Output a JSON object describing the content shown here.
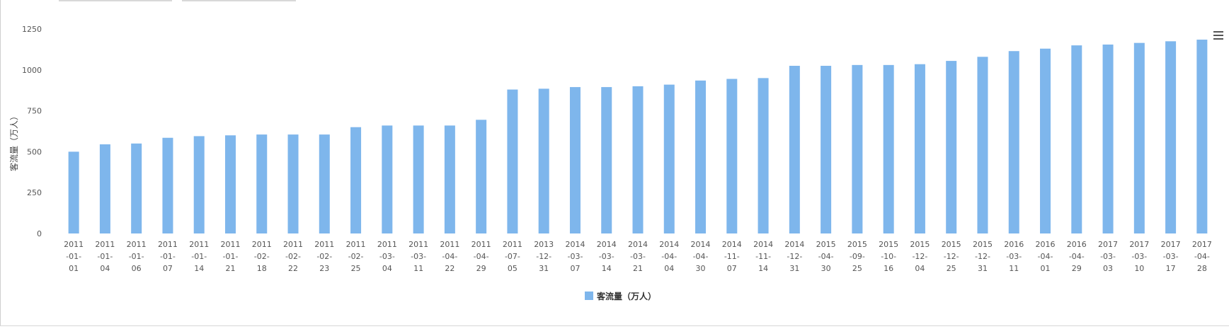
{
  "chart_data": {
    "type": "bar",
    "title": "",
    "xlabel": "",
    "ylabel": "客流量（万人）",
    "legend": {
      "position": "bottom-center",
      "label": "客流量（万人）"
    },
    "color": "#7eb6ec",
    "ylim": [
      0,
      1250
    ],
    "yticks": [
      0,
      250,
      500,
      750,
      1000,
      1250
    ],
    "grid": false,
    "categories": [
      "2011-01-01",
      "2011-01-04",
      "2011-01-06",
      "2011-01-07",
      "2011-01-14",
      "2011-01-21",
      "2011-02-18",
      "2011-02-22",
      "2011-02-23",
      "2011-02-25",
      "2011-03-04",
      "2011-03-11",
      "2011-04-22",
      "2011-04-29",
      "2011-07-05",
      "2013-12-31",
      "2014-03-07",
      "2014-03-14",
      "2014-03-21",
      "2014-04-04",
      "2014-04-30",
      "2014-11-07",
      "2014-11-14",
      "2014-12-31",
      "2015-04-30",
      "2015-09-25",
      "2015-10-16",
      "2015-12-04",
      "2015-12-25",
      "2015-12-31",
      "2016-03-11",
      "2016-04-01",
      "2016-04-29",
      "2017-03-03",
      "2017-03-10",
      "2017-03-17",
      "2017-04-28"
    ],
    "tick_lines": [
      [
        "2011",
        "-01-",
        "01"
      ],
      [
        "2011",
        "-01-",
        "04"
      ],
      [
        "2011",
        "-01-",
        "06"
      ],
      [
        "2011",
        "-01-",
        "07"
      ],
      [
        "2011",
        "-01-",
        "14"
      ],
      [
        "2011",
        "-01-",
        "21"
      ],
      [
        "2011",
        "-02-",
        "18"
      ],
      [
        "2011",
        "-02-",
        "22"
      ],
      [
        "2011",
        "-02-",
        "23"
      ],
      [
        "2011",
        "-02-",
        "25"
      ],
      [
        "2011",
        "-03-",
        "04"
      ],
      [
        "2011",
        "-03-",
        "11"
      ],
      [
        "2011",
        "-04-",
        "22"
      ],
      [
        "2011",
        "-04-",
        "29"
      ],
      [
        "2011",
        "-07-",
        "05"
      ],
      [
        "2013",
        "-12-",
        "31"
      ],
      [
        "2014",
        "-03-",
        "07"
      ],
      [
        "2014",
        "-03-",
        "14"
      ],
      [
        "2014",
        "-03-",
        "21"
      ],
      [
        "2014",
        "-04-",
        "04"
      ],
      [
        "2014",
        "-04-",
        "30"
      ],
      [
        "2014",
        "-11-",
        "07"
      ],
      [
        "2014",
        "-11-",
        "14"
      ],
      [
        "2014",
        "-12-",
        "31"
      ],
      [
        "2015",
        "-04-",
        "30"
      ],
      [
        "2015",
        "-09-",
        "25"
      ],
      [
        "2015",
        "-10-",
        "16"
      ],
      [
        "2015",
        "-12-",
        "04"
      ],
      [
        "2015",
        "-12-",
        "25"
      ],
      [
        "2015",
        "-12-",
        "31"
      ],
      [
        "2016",
        "-03-",
        "11"
      ],
      [
        "2016",
        "-04-",
        "01"
      ],
      [
        "2016",
        "-04-",
        "29"
      ],
      [
        "2017",
        "-03-",
        "03"
      ],
      [
        "2017",
        "-03-",
        "10"
      ],
      [
        "2017",
        "-03-",
        "17"
      ],
      [
        "2017",
        "-04-",
        "28"
      ]
    ],
    "series": [
      {
        "name": "客流量（万人）",
        "values": [
          500,
          545,
          550,
          585,
          595,
          600,
          605,
          605,
          605,
          650,
          660,
          660,
          660,
          695,
          880,
          885,
          895,
          895,
          900,
          910,
          935,
          945,
          950,
          1025,
          1025,
          1030,
          1030,
          1035,
          1055,
          1080,
          1115,
          1130,
          1150,
          1155,
          1165,
          1175,
          1185
        ]
      }
    ]
  }
}
